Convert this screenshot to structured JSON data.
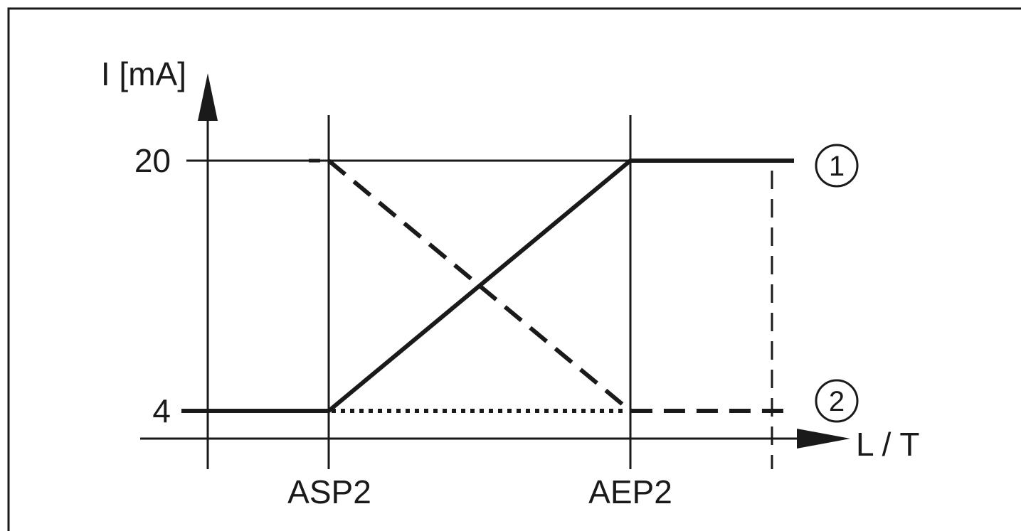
{
  "y_axis": {
    "label": "I [mA]"
  },
  "x_axis": {
    "label": "L / T"
  },
  "y_ticks": {
    "high": "20",
    "low": "4"
  },
  "x_ticks": {
    "start": "ASP2",
    "end": "AEP2"
  },
  "markers": {
    "rising_curve": "1",
    "falling_curve": "2"
  },
  "colors": {
    "ink": "#1a1a1a",
    "background": "#ffffff"
  }
}
